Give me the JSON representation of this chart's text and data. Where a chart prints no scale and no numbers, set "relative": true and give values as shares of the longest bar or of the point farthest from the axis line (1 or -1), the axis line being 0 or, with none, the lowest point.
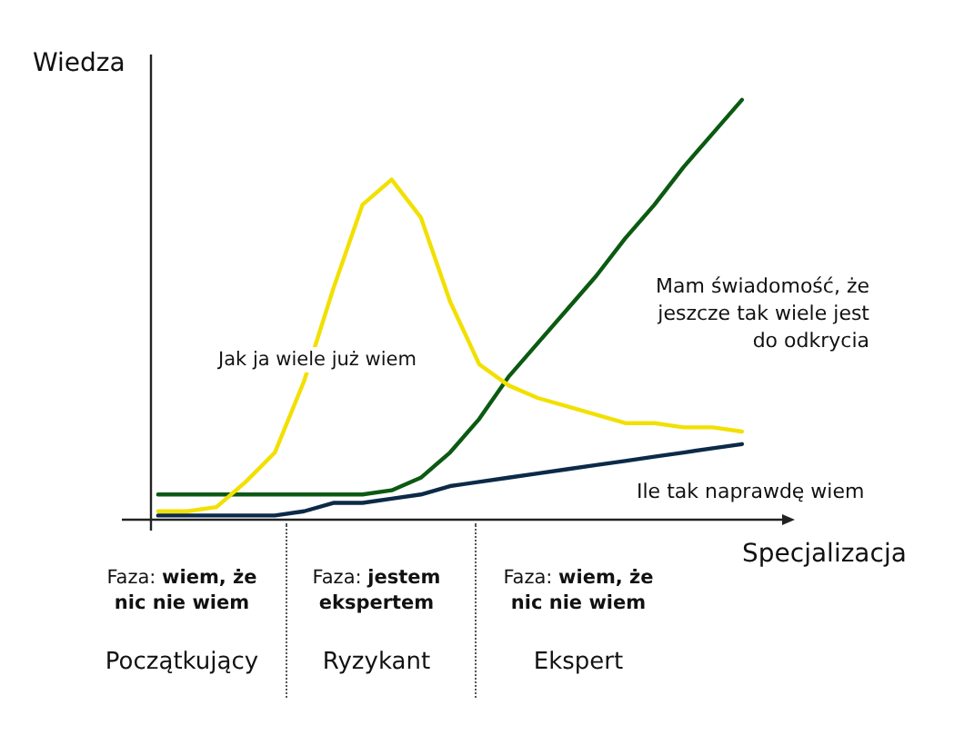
{
  "chart_data": {
    "type": "line",
    "relative": true,
    "xlabel": "Specjalizacja",
    "ylabel": "Wiedza",
    "categories": [
      null,
      null,
      null,
      null,
      null,
      null,
      null,
      null,
      null,
      null,
      null,
      null,
      null,
      null,
      null,
      null,
      null,
      null,
      null,
      null,
      null
    ],
    "series": [
      {
        "name": "Jak ja wiele już wiem",
        "color": "#f2e000",
        "values": [
          0.02,
          0.02,
          0.03,
          0.09,
          0.16,
          0.33,
          0.55,
          0.75,
          0.81,
          0.72,
          0.52,
          0.37,
          0.32,
          0.29,
          0.27,
          0.25,
          0.23,
          0.23,
          0.22,
          0.22,
          0.21
        ]
      },
      {
        "name": "Mam świadomość, że jeszcze tak wiele jest do odkrycia",
        "color": "#0b5a12",
        "values": [
          0.06,
          0.06,
          0.06,
          0.06,
          0.06,
          0.06,
          0.06,
          0.06,
          0.07,
          0.1,
          0.16,
          0.24,
          0.34,
          0.42,
          0.5,
          0.58,
          0.67,
          0.75,
          0.84,
          0.92,
          1
        ]
      },
      {
        "name": "Ile tak naprawdę wiem",
        "color": "#0c2a48",
        "values": [
          0.01,
          0.01,
          0.01,
          0.01,
          0.01,
          0.02,
          0.04,
          0.04,
          0.05,
          0.06,
          0.08,
          0.09,
          0.1,
          0.11,
          0.12,
          0.13,
          0.14,
          0.15,
          0.16,
          0.17,
          0.18
        ]
      }
    ],
    "legend": false,
    "marker": "none",
    "line_style": "solid",
    "annotations": [
      "Faza: wiem, że nic nie wiem",
      "Faza: jestem ekspertem",
      "Faza: wiem, że nic nie wiem",
      "Początkujący",
      "Ryzykant",
      "Ekspert"
    ]
  }
}
